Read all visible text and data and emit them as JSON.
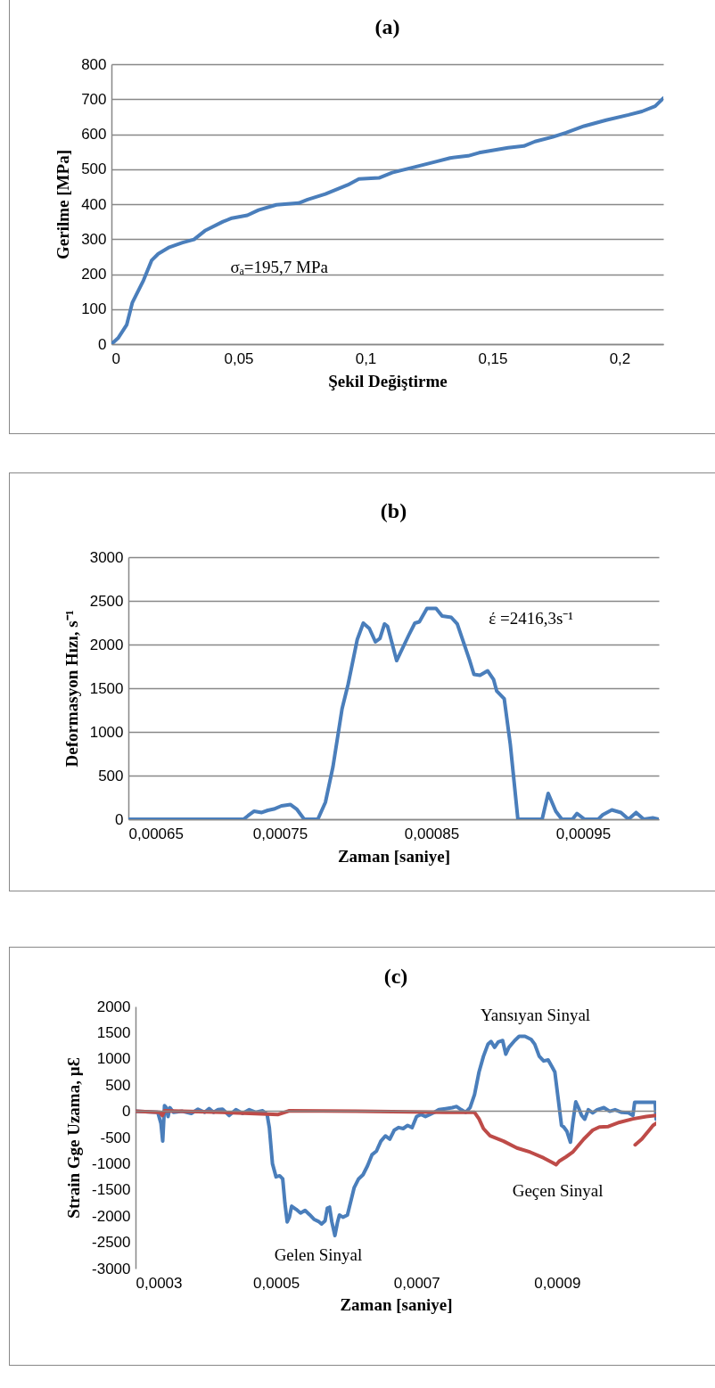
{
  "chart_data": [
    {
      "type": "line",
      "title": "(a)",
      "xlabel": "Şekil Değiştirme",
      "ylabel": "Gerilme [MPa]",
      "xlim": [
        0,
        0.2172
      ],
      "xticks": [
        0,
        {
          "value": 0.05,
          "label": "0,05"
        },
        {
          "value": 0.1,
          "label": "0,1"
        },
        {
          "value": 0.15,
          "label": "0,15"
        },
        {
          "value": 0.2,
          "label": "0,2"
        }
      ],
      "ylim": [
        0,
        800
      ],
      "yticks": [
        0,
        100,
        200,
        300,
        400,
        500,
        600,
        700,
        800
      ],
      "grid": "y",
      "x": [
        0,
        0.0026,
        0.006,
        0.0082,
        0.0126,
        0.0158,
        0.0184,
        0.0228,
        0.028,
        0.0325,
        0.0368,
        0.0439,
        0.0474,
        0.0535,
        0.0579,
        0.0649,
        0.0737,
        0.0772,
        0.0842,
        0.093,
        0.0974,
        0.1053,
        0.1105,
        0.1193,
        0.128,
        0.1333,
        0.1404,
        0.1447,
        0.1561,
        0.1623,
        0.1667,
        0.1737,
        0.1789,
        0.186,
        0.1947,
        0.2035,
        0.2088,
        0.214,
        0.2172
      ],
      "series": [
        {
          "color": "#4a7ebb",
          "values": [
            0,
            17,
            55,
            118,
            182,
            239,
            258,
            277,
            290,
            299,
            324,
            350,
            360,
            368,
            383,
            398,
            403,
            413,
            429,
            455,
            472,
            475,
            490,
            506,
            522,
            532,
            538,
            547,
            561,
            566,
            579,
            592,
            604,
            623,
            640,
            655,
            665,
            680,
            703
          ]
        }
      ],
      "annotations": [
        "σₐ=195,7 MPa"
      ]
    },
    {
      "type": "line",
      "title": "(b)",
      "xlabel": "Zaman [saniye]",
      "ylabel": "Deformasyon Hızı, s⁻¹",
      "xlim": [
        0.00065,
        0.001
      ],
      "xticks": [
        {
          "value": 0.00065,
          "label": "0,00065"
        },
        {
          "value": 0.00075,
          "label": "0,00075"
        },
        {
          "value": 0.00085,
          "label": "0,00085"
        },
        {
          "value": 0.00095,
          "label": "0,00095"
        }
      ],
      "ylim": [
        0,
        3000
      ],
      "yticks": [
        0,
        500,
        1000,
        1500,
        2000,
        2500,
        3000
      ],
      "grid": "y",
      "x": [
        0.00065,
        0.000726,
        0.000729,
        0.000733,
        0.000738,
        0.000742,
        0.000746,
        0.000751,
        0.000757,
        0.000761,
        0.000766,
        0.000775,
        0.00078,
        0.000785,
        0.000791,
        0.000795,
        0.000801,
        0.000805,
        0.000809,
        0.000813,
        0.000816,
        0.000819,
        0.000821,
        0.000827,
        0.000835,
        0.000839,
        0.000842,
        0.000847,
        0.000853,
        0.000857,
        0.000863,
        0.000867,
        0.000875,
        0.000878,
        0.000882,
        0.000887,
        0.000891,
        0.000893,
        0.000898,
        0.000902,
        0.000907,
        0.000923,
        0.000927,
        0.000932,
        0.000936,
        0.000943,
        0.000946,
        0.000951,
        0.00096,
        0.000963,
        0.000969,
        0.000975,
        0.00098,
        0.000985,
        0.00099,
        0.000996,
        0.001
      ],
      "series": [
        {
          "color": "#4a7ebb",
          "values": [
            0,
            0,
            41,
            92,
            77,
            102,
            117,
            153,
            168,
            117,
            0,
            0,
            194,
            602,
            1265,
            1546,
            2056,
            2245,
            2184,
            2031,
            2071,
            2235,
            2209,
            1816,
            2107,
            2245,
            2260,
            2413,
            2413,
            2327,
            2311,
            2235,
            1827,
            1658,
            1648,
            1699,
            1597,
            1469,
            1378,
            857,
            0,
            0,
            296,
            92,
            0,
            0,
            66,
            0,
            0,
            51,
            107,
            77,
            0,
            77,
            0,
            15,
            0
          ]
        }
      ],
      "annotations": [
        "έ =2416,3s⁻¹"
      ]
    },
    {
      "type": "line",
      "title": "(c)",
      "xlabel": "Zaman [saniye]",
      "ylabel": "Strain Gge Uzama, µƐ",
      "xlim": [
        0.0003,
        0.001041
      ],
      "xticks": [
        {
          "value": 0.0003,
          "label": "0,0003"
        },
        {
          "value": 0.0005,
          "label": "0,0005"
        },
        {
          "value": 0.0007,
          "label": "0,0007"
        },
        {
          "value": 0.0009,
          "label": "0,0009"
        }
      ],
      "ylim": [
        -3000,
        2000
      ],
      "yticks": [
        -3000,
        -2500,
        -2000,
        -1500,
        -1000,
        -500,
        0,
        500,
        1000,
        1500,
        2000
      ],
      "grid": false,
      "ref_lines": [
        {
          "axis": "y",
          "value": 0,
          "color": "#888888"
        }
      ],
      "series": [
        {
          "color": "#4a7ebb",
          "x": [
            0.0003,
            0.0003317,
            0.0003362,
            0.0003387,
            0.0003413,
            0.0003438,
            0.0003463,
            0.0003489,
            0.000354,
            0.0003667,
            0.0003794,
            0.0003889,
            0.0003984,
            0.0004048,
            0.0004111,
            0.0004175,
            0.0004238,
            0.0004333,
            0.0004429,
            0.0004524,
            0.0004619,
            0.0004714,
            0.0004809,
            0.0004873,
            0.0004905,
            0.0004949,
            0.0005,
            0.0005051,
            0.0005095,
            0.0005127,
            0.0005159,
            0.000519,
            0.0005222,
            0.0005286,
            0.0005349,
            0.0005413,
            0.0005476,
            0.000554,
            0.0005603,
            0.0005648,
            0.0005698,
            0.000573,
            0.0005762,
            0.0005794,
            0.0005838,
            0.0005876,
            0.0005902,
            0.0005952,
            0.0006016,
            0.0006111,
            0.0006175,
            0.0006238,
            0.0006302,
            0.0006365,
            0.0006429,
            0.0006492,
            0.0006556,
            0.0006619,
            0.0006683,
            0.0006746,
            0.000681,
            0.0006873,
            0.0006937,
            0.0007,
            0.0007063,
            0.0007127,
            0.000719,
            0.0007254,
            0.0007317,
            0.0007413,
            0.0007508,
            0.0007571,
            0.0007635,
            0.0007698,
            0.0007762,
            0.0007825,
            0.0007889,
            0.0007952,
            0.0008016,
            0.000806,
            0.0008111,
            0.0008162,
            0.0008225,
            0.000827,
            0.0008314,
            0.0008397,
            0.000846,
            0.0008543,
            0.0008631,
            0.0008682,
            0.0008746,
            0.0008809,
            0.0008873,
            0.0008923,
            0.0008968,
            0.0009012,
            0.0009063,
            0.0009095,
            0.0009139,
            0.000919,
            0.0009222,
            0.0009266,
            0.0009304,
            0.0009349,
            0.0009393,
            0.0009444,
            0.0009507,
            0.0009571,
            0.0009666,
            0.0009749,
            0.0009825,
            0.000992,
            0.0010015,
            0.0010079,
            0.0010104,
            0.0010396,
            0.0010409
          ],
          "values": [
            0,
            -20,
            -230,
            -570,
            110,
            68,
            -100,
            68,
            -20,
            0,
            -40,
            40,
            -20,
            50,
            -20,
            30,
            40,
            -80,
            30,
            -40,
            30,
            -20,
            10,
            -60,
            -315,
            -1000,
            -1250,
            -1230,
            -1290,
            -1760,
            -2110,
            -2020,
            -1810,
            -1870,
            -1940,
            -1890,
            -1970,
            -2060,
            -2100,
            -2150,
            -2090,
            -1850,
            -1830,
            -2110,
            -2370,
            -2110,
            -1980,
            -2020,
            -1980,
            -1460,
            -1290,
            -1210,
            -1040,
            -830,
            -760,
            -570,
            -470,
            -530,
            -360,
            -310,
            -330,
            -270,
            -310,
            -100,
            -60,
            -100,
            -60,
            -20,
            30,
            50,
            70,
            90,
            30,
            -20,
            70,
            320,
            750,
            1050,
            1280,
            1330,
            1220,
            1320,
            1350,
            1090,
            1220,
            1350,
            1430,
            1430,
            1370,
            1280,
            1050,
            960,
            980,
            860,
            750,
            280,
            -270,
            -300,
            -380,
            -590,
            -230,
            180,
            70,
            -80,
            -150,
            30,
            -30,
            30,
            70,
            0,
            30,
            -20,
            -30,
            -80,
            170,
            170,
            -150
          ]
        },
        {
          "color": "#be4b48",
          "x": [
            0.0003,
            0.0003349,
            0.0003381,
            0.0003413,
            0.0004238,
            0.0005032,
            0.000519,
            0.0006143,
            0.0007413,
            0.0007825,
            0.0007889,
            0.0007952,
            0.0008048,
            0.0008238,
            0.0008428,
            0.0008619,
            0.0008809,
            0.0008936,
            0.0008987,
            0.0009031,
            0.0009127,
            0.0009222,
            0.000938,
            0.0009507,
            0.0009602,
            0.0009729,
            0.0009888,
            0.0010079,
            0.0010269,
            0.0010409
          ],
          "values": [
            0,
            -20,
            -80,
            10,
            -20,
            -60,
            10,
            0,
            -20,
            -20,
            -145,
            -330,
            -470,
            -570,
            -700,
            -780,
            -890,
            -980,
            -1020,
            -950,
            -870,
            -780,
            -530,
            -360,
            -300,
            -290,
            -210,
            -145,
            -100,
            -80
          ]
        },
        {
          "color": "#be4b48",
          "x": [
            0.0010111,
            0.0010206,
            0.0010301,
            0.0010365,
            0.0010409
          ],
          "values": [
            -640,
            -530,
            -375,
            -270,
            -230
          ]
        }
      ],
      "annotations": [
        "Yansıyan Sinyal",
        "Gelen Sinyal",
        "Geçen Sinyal"
      ]
    }
  ]
}
